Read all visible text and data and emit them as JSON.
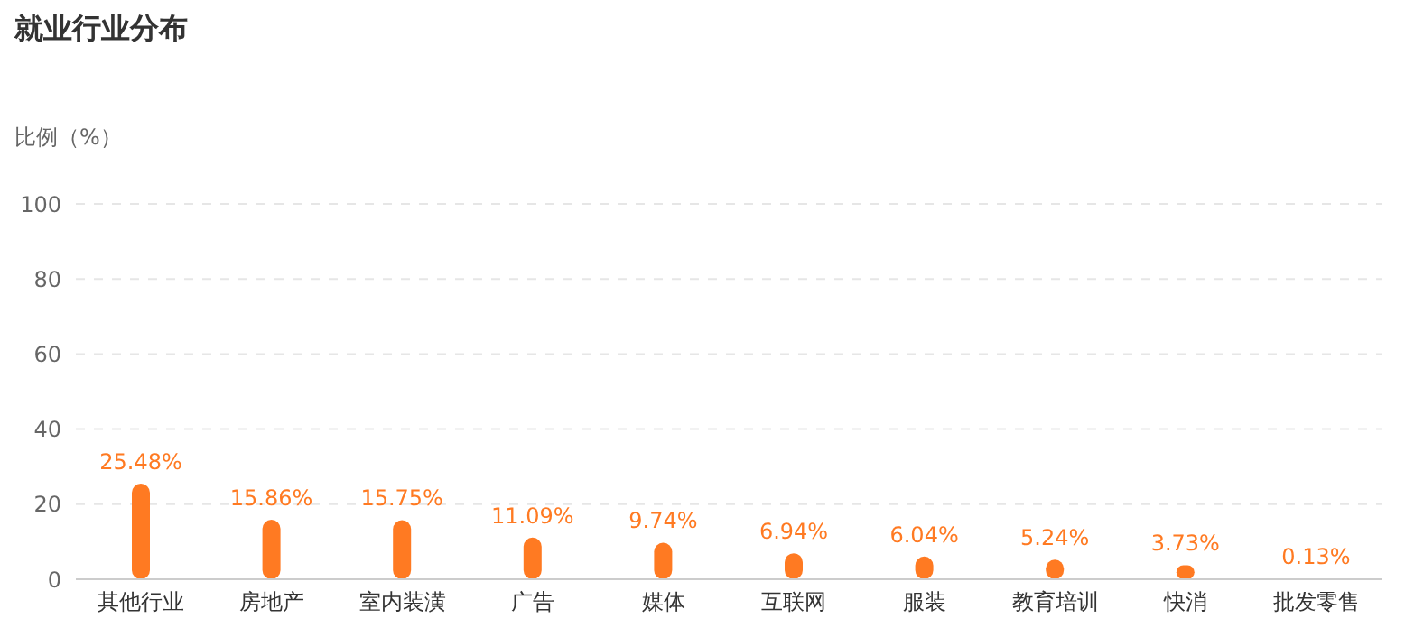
{
  "chart_data": {
    "type": "bar",
    "title": "就业行业分布",
    "ylabel": "比例（%）",
    "categories": [
      "其他行业",
      "房地产",
      "室内装潢",
      "广告",
      "媒体",
      "互联网",
      "服装",
      "教育培训",
      "快消",
      "批发零售"
    ],
    "values": [
      25.48,
      15.86,
      15.75,
      11.09,
      9.74,
      6.94,
      6.04,
      5.24,
      3.73,
      0.13
    ],
    "value_labels": [
      "25.48%",
      "15.86%",
      "15.75%",
      "11.09%",
      "9.74%",
      "6.94%",
      "6.04%",
      "5.24%",
      "3.73%",
      "0.13%"
    ],
    "color": "#ff7a22",
    "ylim": [
      0,
      100
    ],
    "yticks": [
      0,
      20,
      40,
      60,
      80,
      100
    ],
    "grid": "y"
  }
}
